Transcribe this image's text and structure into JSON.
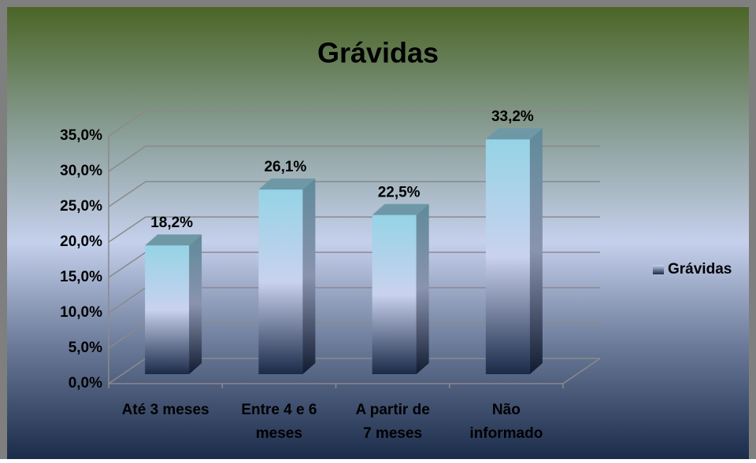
{
  "chart_data": {
    "type": "bar3d",
    "title": "Grávidas",
    "categories": [
      "Até 3 meses",
      "Entre 4 e 6 meses",
      "A partir de 7 meses",
      "Não informado"
    ],
    "series": [
      {
        "name": "Grávidas",
        "color": "#9fd8e8",
        "values": [
          18.2,
          26.1,
          22.5,
          33.2
        ],
        "value_labels": [
          "18,2%",
          "26,1%",
          "22,5%",
          "33,2%"
        ]
      }
    ],
    "ylim": [
      0,
      35
    ],
    "yticks": [
      {
        "value": 0,
        "label": "0,0%"
      },
      {
        "value": 5,
        "label": "5,0%"
      },
      {
        "value": 10,
        "label": "10,0%"
      },
      {
        "value": 15,
        "label": "15,0%"
      },
      {
        "value": 20,
        "label": "20,0%"
      },
      {
        "value": 25,
        "label": "25,0%"
      },
      {
        "value": 30,
        "label": "30,0%"
      },
      {
        "value": 35,
        "label": "35,0%"
      }
    ],
    "grid": true,
    "legend": "right"
  }
}
